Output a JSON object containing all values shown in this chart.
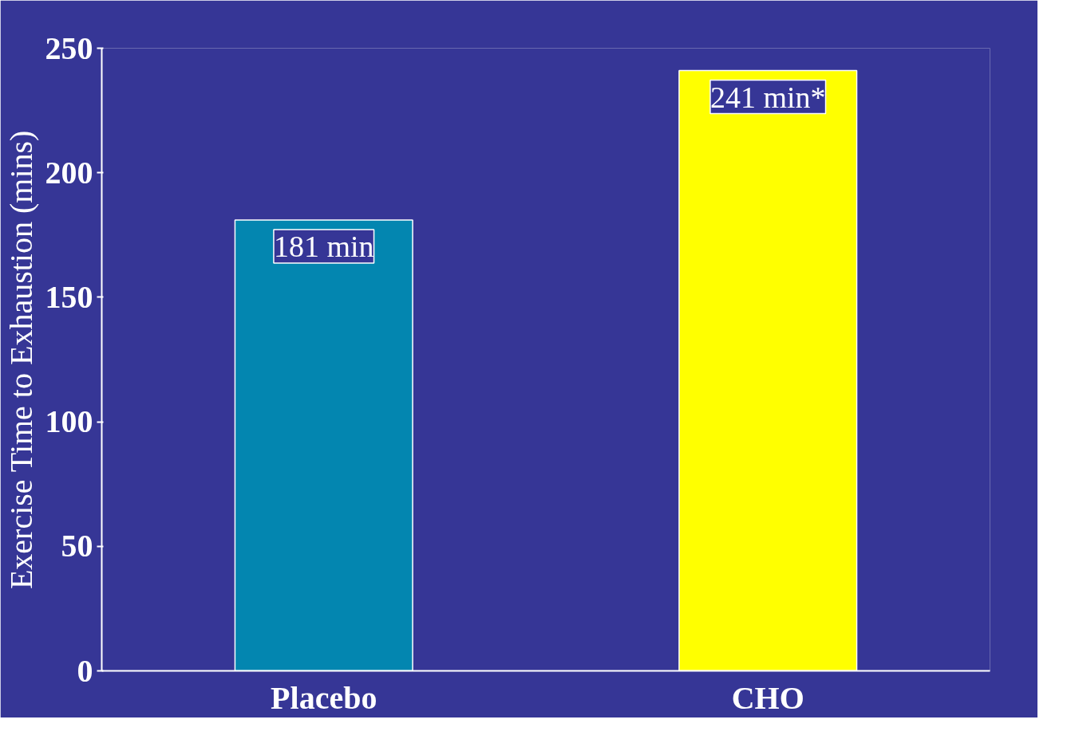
{
  "chart_data": {
    "type": "bar",
    "ylabel": "Exercise Time to Exhaustion (mins)",
    "categories": [
      "Placebo",
      "CHO"
    ],
    "values": [
      181,
      241
    ],
    "colors": [
      "#0386b0",
      "#ffff00"
    ],
    "value_labels": [
      "181 min",
      "241 min*"
    ],
    "ylim": [
      0,
      250
    ],
    "yticks": [
      0,
      50,
      100,
      150,
      200,
      250
    ],
    "grid": false
  }
}
